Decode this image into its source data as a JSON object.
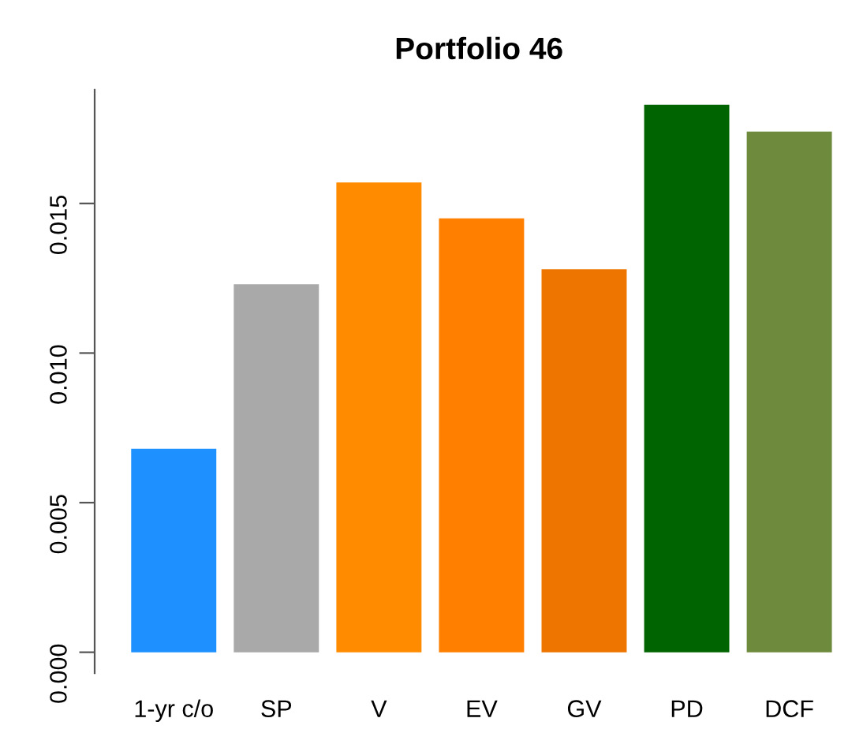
{
  "chart_data": {
    "type": "bar",
    "title": "Portfolio 46",
    "categories": [
      "1-yr c/o",
      "SP",
      "V",
      "EV",
      "GV",
      "PD",
      "DCF"
    ],
    "values": [
      0.0068,
      0.0123,
      0.0157,
      0.0145,
      0.0128,
      0.0183,
      0.0174
    ],
    "colors": [
      "#1e90ff",
      "#a9a9a9",
      "#ff8c00",
      "#ff7f00",
      "#ee7600",
      "#006400",
      "#6e8b3d"
    ],
    "ylim": [
      -0.0007,
      0.0188
    ],
    "yticks": [
      {
        "value": 0,
        "label": "0.000"
      },
      {
        "value": 0.005,
        "label": "0.005"
      },
      {
        "value": 0.01,
        "label": "0.010"
      },
      {
        "value": 0.015,
        "label": "0.015"
      }
    ],
    "grid": false
  }
}
